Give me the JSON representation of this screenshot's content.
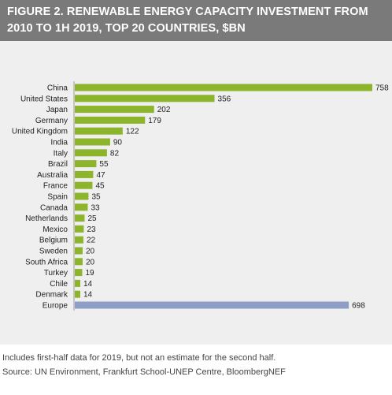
{
  "header": {
    "title_line1": "FIGURE 2. RENEWABLE ENERGY CAPACITY INVESTMENT FROM",
    "title_line2": "2010 TO 1H 2019, TOP 20 COUNTRIES, $BN"
  },
  "footer": {
    "note": "Includes first-half data for 2019, but not an estimate for the second half.",
    "source": "Source: UN Environment, Frankfurt School-UNEP Centre, BloombergNEF"
  },
  "colors": {
    "header_bg": "#7a7a7a",
    "panel_bg": "#efefef",
    "country_bar": "#8cb52c",
    "europe_bar": "#8e9ec6"
  },
  "chart_data": {
    "type": "bar",
    "orientation": "horizontal",
    "title": "FIGURE 2. RENEWABLE ENERGY CAPACITY INVESTMENT FROM 2010 TO 1H 2019, TOP 20 COUNTRIES, $BN",
    "categories": [
      "China",
      "United States",
      "Japan",
      "Germany",
      "United Kingdom",
      "India",
      "Italy",
      "Brazil",
      "Australia",
      "France",
      "Spain",
      "Canada",
      "Netherlands",
      "Mexico",
      "Belgium",
      "Sweden",
      "South Africa",
      "Turkey",
      "Chile",
      "Denmark",
      "Europe"
    ],
    "values": [
      758,
      356,
      202,
      179,
      122,
      90,
      82,
      55,
      47,
      45,
      35,
      33,
      25,
      23,
      22,
      20,
      20,
      19,
      14,
      14,
      698
    ],
    "value_labels": [
      "758",
      "356",
      "202",
      "179",
      "122",
      "90",
      "82",
      "55",
      "47",
      "45",
      "35",
      "33",
      "25",
      "23",
      "22",
      "20",
      "20",
      "19",
      "14",
      "14",
      "698"
    ],
    "highlight_category": "Europe",
    "xlim": [
      0,
      758
    ],
    "grid": false,
    "legend": "none",
    "xlabel": "",
    "ylabel": ""
  }
}
